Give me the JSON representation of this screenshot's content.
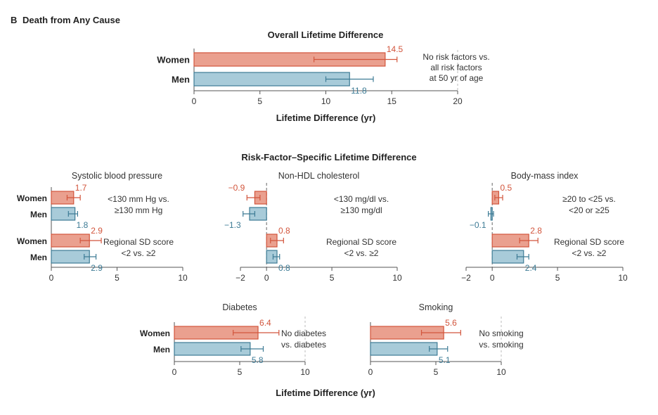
{
  "panel_label": "B",
  "panel_title": "Death from Any Cause",
  "section_titles": {
    "overall": "Overall Lifetime Difference",
    "specific": "Risk-Factor–Specific Lifetime Difference"
  },
  "colors": {
    "women_fill": "#eaa08f",
    "women_stroke": "#d2553c",
    "men_fill": "#a8cbd9",
    "men_stroke": "#3d7b95",
    "women_label": "#d2553c",
    "men_label": "#3d7b95"
  },
  "chart_data": [
    {
      "id": "overall",
      "type": "bar",
      "orientation": "horizontal",
      "title": "Overall Lifetime Difference",
      "xlabel": "Lifetime Difference (yr)",
      "xlim": [
        0,
        20
      ],
      "xticks": [
        0,
        5,
        10,
        15,
        20
      ],
      "categories": [
        "Women",
        "Men"
      ],
      "values": [
        14.5,
        11.8
      ],
      "error_low": [
        9.1,
        10.0
      ],
      "error_high": [
        15.4,
        13.6
      ],
      "value_labels": [
        "14.5",
        "11.8"
      ],
      "annotations": [
        {
          "lines": [
            "No risk factors vs.",
            "all risk factors",
            "at 50 yr of age"
          ]
        }
      ]
    },
    {
      "id": "sbp",
      "type": "bar",
      "orientation": "horizontal",
      "title": "Systolic blood pressure",
      "xlim": [
        0,
        10
      ],
      "xticks": [
        0,
        5,
        10
      ],
      "groups": [
        {
          "categories": [
            "Women",
            "Men"
          ],
          "values": [
            1.7,
            1.8
          ],
          "error_low": [
            1.2,
            1.3
          ],
          "error_high": [
            2.2,
            2.0
          ],
          "value_labels": [
            "1.7",
            "1.8"
          ],
          "annotation": [
            "<130 mm Hg vs.",
            "≥130 mm Hg"
          ]
        },
        {
          "categories": [
            "Women",
            "Men"
          ],
          "values": [
            2.9,
            2.9
          ],
          "error_low": [
            2.2,
            2.5
          ],
          "error_high": [
            3.8,
            3.4
          ],
          "value_labels": [
            "2.9",
            "2.9"
          ],
          "annotation": [
            "Regional SD score",
            "<2 vs. ≥2"
          ]
        }
      ]
    },
    {
      "id": "nonhdl",
      "type": "bar",
      "orientation": "horizontal",
      "title": "Non-HDL cholesterol",
      "xlim": [
        -2,
        10
      ],
      "xticks": [
        -2,
        0,
        5,
        10
      ],
      "groups": [
        {
          "categories": [
            "Women",
            "Men"
          ],
          "values": [
            -0.9,
            -1.3
          ],
          "error_low": [
            -1.5,
            -1.8
          ],
          "error_high": [
            -0.5,
            -0.9
          ],
          "value_labels": [
            "−0.9",
            "−1.3"
          ],
          "annotation": [
            "<130 mg/dl vs.",
            "≥130 mg/dl"
          ]
        },
        {
          "categories": [
            "Women",
            "Men"
          ],
          "values": [
            0.8,
            0.8
          ],
          "error_low": [
            0.3,
            0.5
          ],
          "error_high": [
            1.3,
            1.0
          ],
          "value_labels": [
            "0.8",
            "0.8"
          ],
          "annotation": [
            "Regional SD score",
            "<2 vs. ≥2"
          ]
        }
      ]
    },
    {
      "id": "bmi",
      "type": "bar",
      "orientation": "horizontal",
      "title": "Body-mass index",
      "xlim": [
        -2,
        10
      ],
      "xticks": [
        -2,
        0,
        5,
        10
      ],
      "groups": [
        {
          "categories": [
            "Women",
            "Men"
          ],
          "values": [
            0.5,
            -0.1
          ],
          "error_low": [
            0.2,
            -0.3
          ],
          "error_high": [
            0.8,
            0.1
          ],
          "value_labels": [
            "0.5",
            "−0.1"
          ],
          "annotation": [
            "≥20 to <25 vs.",
            "<20 or ≥25"
          ]
        },
        {
          "categories": [
            "Women",
            "Men"
          ],
          "values": [
            2.8,
            2.4
          ],
          "error_low": [
            2.1,
            1.9
          ],
          "error_high": [
            3.5,
            2.8
          ],
          "value_labels": [
            "2.8",
            "2.4"
          ],
          "annotation": [
            "Regional SD score",
            "<2 vs. ≥2"
          ]
        }
      ]
    },
    {
      "id": "diabetes",
      "type": "bar",
      "orientation": "horizontal",
      "title": "Diabetes",
      "xlim": [
        0,
        10
      ],
      "xticks": [
        0,
        5,
        10
      ],
      "categories": [
        "Women",
        "Men"
      ],
      "values": [
        6.4,
        5.8
      ],
      "error_low": [
        4.5,
        5.1
      ],
      "error_high": [
        8.0,
        6.8
      ],
      "value_labels": [
        "6.4",
        "5.8"
      ],
      "annotation": [
        "No diabetes",
        "vs. diabetes"
      ]
    },
    {
      "id": "smoking",
      "type": "bar",
      "orientation": "horizontal",
      "title": "Smoking",
      "xlim": [
        0,
        10
      ],
      "xticks": [
        0,
        5,
        10
      ],
      "categories": [
        "Women",
        "Men"
      ],
      "values": [
        5.6,
        5.1
      ],
      "error_low": [
        3.9,
        4.5
      ],
      "error_high": [
        6.9,
        5.9
      ],
      "value_labels": [
        "5.6",
        "5.1"
      ],
      "annotation": [
        "No smoking",
        "vs. smoking"
      ]
    }
  ],
  "bottom_xlabel": "Lifetime Difference (yr)"
}
